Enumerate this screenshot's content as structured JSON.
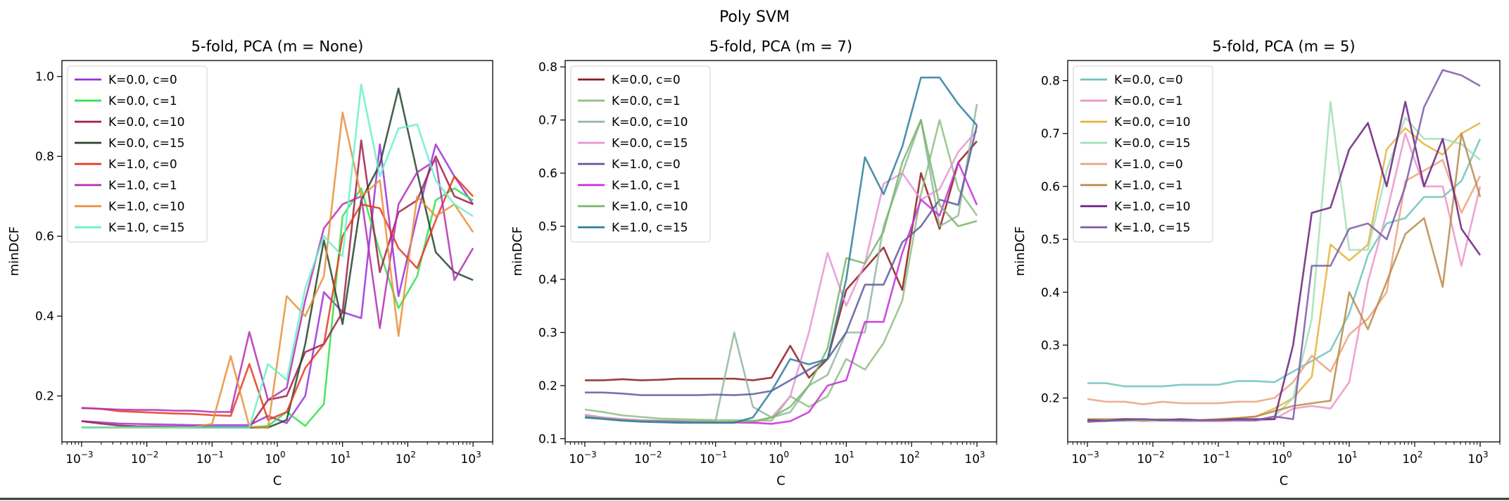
{
  "figure": {
    "suptitle": "Poly SVM"
  },
  "chart_data": [
    {
      "type": "line",
      "title": "5-fold, PCA (m = None)",
      "xlabel": "C",
      "ylabel": "minDCF",
      "xscale": "log",
      "xlim": [
        0.0005,
        2000
      ],
      "ylim": [
        0.085,
        1.04
      ],
      "x_ticks": [
        0.001,
        0.01,
        0.1,
        1,
        10,
        100,
        1000
      ],
      "x_tick_labels": [
        [
          "10",
          "−3"
        ],
        [
          "10",
          "−2"
        ],
        [
          "10",
          "−1"
        ],
        [
          "10",
          "0"
        ],
        [
          "10",
          "1"
        ],
        [
          "10",
          "2"
        ],
        [
          "10",
          "3"
        ]
      ],
      "y_ticks": [
        0.2,
        0.4,
        0.6,
        0.8,
        1.0
      ],
      "y_tick_labels": [
        "0.2",
        "0.4",
        "0.6",
        "0.8",
        "1.0"
      ],
      "legend": "upper-left",
      "x": [
        0.001,
        0.00193,
        0.00373,
        0.0072,
        0.0139,
        0.0268,
        0.0518,
        0.1,
        0.193,
        0.373,
        0.72,
        1.39,
        2.68,
        5.18,
        10,
        19.3,
        37.3,
        72,
        139,
        268,
        518,
        1000
      ],
      "series": [
        {
          "name": "K=0.0, c=0",
          "color": "#9b30d9",
          "values": [
            0.137,
            0.134,
            0.131,
            0.13,
            0.129,
            0.128,
            0.127,
            0.127,
            0.127,
            0.127,
            0.15,
            0.132,
            0.2,
            0.46,
            0.41,
            0.395,
            0.83,
            0.45,
            0.65,
            0.83,
            0.75,
            0.68
          ]
        },
        {
          "name": "K=0.0, c=1",
          "color": "#33e04a",
          "values": [
            0.121,
            0.121,
            0.121,
            0.121,
            0.121,
            0.121,
            0.121,
            0.121,
            0.121,
            0.121,
            0.125,
            0.16,
            0.125,
            0.18,
            0.65,
            0.72,
            0.56,
            0.42,
            0.5,
            0.69,
            0.72,
            0.69
          ]
        },
        {
          "name": "K=0.0, c=10",
          "color": "#9e1f4a",
          "values": [
            0.137,
            0.131,
            0.126,
            0.124,
            0.124,
            0.123,
            0.123,
            0.122,
            0.122,
            0.122,
            0.19,
            0.2,
            0.31,
            0.33,
            0.41,
            0.84,
            0.51,
            0.66,
            0.69,
            0.8,
            0.7,
            0.68
          ]
        },
        {
          "name": "K=0.0, c=15",
          "color": "#24472c",
          "values": [
            0.121,
            0.121,
            0.121,
            0.121,
            0.121,
            0.121,
            0.121,
            0.121,
            0.121,
            0.121,
            0.121,
            0.14,
            0.33,
            0.59,
            0.38,
            0.69,
            0.78,
            0.97,
            0.76,
            0.56,
            0.51,
            0.49
          ]
        },
        {
          "name": "K=1.0, c=0",
          "color": "#e8371f",
          "values": [
            0.17,
            0.168,
            0.162,
            0.16,
            0.158,
            0.156,
            0.155,
            0.152,
            0.15,
            0.28,
            0.14,
            0.16,
            0.27,
            0.33,
            0.6,
            0.68,
            0.67,
            0.57,
            0.52,
            0.64,
            0.75,
            0.7
          ]
        },
        {
          "name": "K=1.0, c=1",
          "color": "#b42fb4",
          "values": [
            0.17,
            0.168,
            0.166,
            0.165,
            0.165,
            0.163,
            0.163,
            0.16,
            0.16,
            0.36,
            0.19,
            0.22,
            0.44,
            0.62,
            0.68,
            0.7,
            0.37,
            0.68,
            0.76,
            0.79,
            0.49,
            0.57
          ]
        },
        {
          "name": "K=1.0, c=10",
          "color": "#e88f3a",
          "values": [
            0.121,
            0.121,
            0.121,
            0.121,
            0.121,
            0.121,
            0.122,
            0.13,
            0.3,
            0.123,
            0.12,
            0.45,
            0.4,
            0.5,
            0.91,
            0.7,
            0.74,
            0.35,
            0.7,
            0.65,
            0.68,
            0.61
          ]
        },
        {
          "name": "K=1.0, c=15",
          "color": "#66f2c9",
          "values": [
            0.121,
            0.121,
            0.121,
            0.121,
            0.121,
            0.121,
            0.121,
            0.121,
            0.121,
            0.121,
            0.28,
            0.24,
            0.47,
            0.6,
            0.55,
            0.98,
            0.75,
            0.87,
            0.88,
            0.74,
            0.68,
            0.65
          ]
        }
      ]
    },
    {
      "type": "line",
      "title": "5-fold, PCA (m = 7)",
      "xlabel": "C",
      "ylabel": "minDCF",
      "xscale": "log",
      "xlim": [
        0.0005,
        2000
      ],
      "ylim": [
        0.094,
        0.812
      ],
      "x_ticks": [
        0.001,
        0.01,
        0.1,
        1,
        10,
        100,
        1000
      ],
      "x_tick_labels": [
        [
          "10",
          "−3"
        ],
        [
          "10",
          "−2"
        ],
        [
          "10",
          "−1"
        ],
        [
          "10",
          "0"
        ],
        [
          "10",
          "1"
        ],
        [
          "10",
          "2"
        ],
        [
          "10",
          "3"
        ]
      ],
      "y_ticks": [
        0.1,
        0.2,
        0.3,
        0.4,
        0.5,
        0.6,
        0.7,
        0.8
      ],
      "y_tick_labels": [
        "0.1",
        "0.2",
        "0.3",
        "0.4",
        "0.5",
        "0.6",
        "0.7",
        "0.8"
      ],
      "legend": "upper-left",
      "x": [
        0.001,
        0.00193,
        0.00373,
        0.0072,
        0.0139,
        0.0268,
        0.0518,
        0.1,
        0.193,
        0.373,
        0.72,
        1.39,
        2.68,
        5.18,
        10,
        19.3,
        37.3,
        72,
        139,
        268,
        518,
        1000
      ],
      "series": [
        {
          "name": "K=0.0, c=0",
          "color": "#8b1a1a",
          "values": [
            0.21,
            0.21,
            0.212,
            0.21,
            0.211,
            0.213,
            0.213,
            0.213,
            0.213,
            0.21,
            0.215,
            0.275,
            0.215,
            0.25,
            0.38,
            0.42,
            0.46,
            0.38,
            0.6,
            0.495,
            0.62,
            0.66
          ]
        },
        {
          "name": "K=0.0, c=1",
          "color": "#8fbf7f",
          "values": [
            0.155,
            0.15,
            0.144,
            0.141,
            0.138,
            0.137,
            0.136,
            0.135,
            0.135,
            0.134,
            0.134,
            0.18,
            0.16,
            0.18,
            0.25,
            0.23,
            0.28,
            0.36,
            0.56,
            0.7,
            0.57,
            0.52
          ]
        },
        {
          "name": "K=0.0, c=10",
          "color": "#8fb89c",
          "values": [
            0.145,
            0.14,
            0.137,
            0.135,
            0.134,
            0.134,
            0.134,
            0.134,
            0.3,
            0.16,
            0.14,
            0.15,
            0.2,
            0.22,
            0.3,
            0.3,
            0.5,
            0.6,
            0.7,
            0.5,
            0.52,
            0.73
          ]
        },
        {
          "name": "K=0.0, c=15",
          "color": "#e693d8",
          "values": [
            0.145,
            0.14,
            0.137,
            0.135,
            0.133,
            0.132,
            0.131,
            0.13,
            0.13,
            0.13,
            0.14,
            0.18,
            0.3,
            0.45,
            0.35,
            0.43,
            0.58,
            0.6,
            0.55,
            0.57,
            0.64,
            0.68
          ]
        },
        {
          "name": "K=1.0, c=0",
          "color": "#5a5aa0",
          "values": [
            0.187,
            0.187,
            0.185,
            0.182,
            0.182,
            0.182,
            0.182,
            0.183,
            0.182,
            0.184,
            0.19,
            0.21,
            0.23,
            0.25,
            0.3,
            0.39,
            0.39,
            0.47,
            0.5,
            0.55,
            0.54,
            0.69
          ]
        },
        {
          "name": "K=1.0, c=1",
          "color": "#c42fd9",
          "values": [
            0.14,
            0.138,
            0.135,
            0.133,
            0.133,
            0.132,
            0.131,
            0.131,
            0.131,
            0.13,
            0.128,
            0.133,
            0.15,
            0.2,
            0.21,
            0.32,
            0.32,
            0.45,
            0.55,
            0.52,
            0.62,
            0.54
          ]
        },
        {
          "name": "K=1.0, c=10",
          "color": "#7ab56b",
          "values": [
            0.142,
            0.138,
            0.135,
            0.133,
            0.132,
            0.131,
            0.131,
            0.131,
            0.132,
            0.133,
            0.14,
            0.16,
            0.2,
            0.27,
            0.44,
            0.43,
            0.49,
            0.62,
            0.7,
            0.54,
            0.5,
            0.51
          ]
        },
        {
          "name": "K=1.0, c=15",
          "color": "#2e7d9c",
          "values": [
            0.14,
            0.137,
            0.134,
            0.132,
            0.131,
            0.13,
            0.13,
            0.13,
            0.13,
            0.14,
            0.19,
            0.25,
            0.24,
            0.25,
            0.4,
            0.63,
            0.56,
            0.65,
            0.78,
            0.78,
            0.73,
            0.69
          ]
        }
      ]
    },
    {
      "type": "line",
      "title": "5-fold, PCA (m = 5)",
      "xlabel": "C",
      "ylabel": "minDCF",
      "xscale": "log",
      "xlim": [
        0.0005,
        2000
      ],
      "ylim": [
        0.117,
        0.838
      ],
      "x_ticks": [
        0.001,
        0.01,
        0.1,
        1,
        10,
        100,
        1000
      ],
      "x_tick_labels": [
        [
          "10",
          "−3"
        ],
        [
          "10",
          "−2"
        ],
        [
          "10",
          "−1"
        ],
        [
          "10",
          "0"
        ],
        [
          "10",
          "1"
        ],
        [
          "10",
          "2"
        ],
        [
          "10",
          "3"
        ]
      ],
      "y_ticks": [
        0.2,
        0.3,
        0.4,
        0.5,
        0.6,
        0.7,
        0.8
      ],
      "y_tick_labels": [
        "0.2",
        "0.3",
        "0.4",
        "0.5",
        "0.6",
        "0.7",
        "0.8"
      ],
      "legend": "upper-left",
      "x": [
        0.001,
        0.00193,
        0.00373,
        0.0072,
        0.0139,
        0.0268,
        0.0518,
        0.1,
        0.193,
        0.373,
        0.72,
        1.39,
        2.68,
        5.18,
        10,
        19.3,
        37.3,
        72,
        139,
        268,
        518,
        1000
      ],
      "series": [
        {
          "name": "K=0.0, c=0",
          "color": "#6cc4bc",
          "values": [
            0.228,
            0.228,
            0.222,
            0.222,
            0.222,
            0.225,
            0.225,
            0.225,
            0.232,
            0.232,
            0.23,
            0.25,
            0.27,
            0.29,
            0.36,
            0.47,
            0.53,
            0.54,
            0.58,
            0.58,
            0.61,
            0.69
          ]
        },
        {
          "name": "K=0.0, c=1",
          "color": "#eb94c8",
          "values": [
            0.155,
            0.157,
            0.157,
            0.156,
            0.157,
            0.156,
            0.156,
            0.156,
            0.157,
            0.157,
            0.16,
            0.18,
            0.185,
            0.18,
            0.23,
            0.42,
            0.55,
            0.7,
            0.6,
            0.6,
            0.45,
            0.6
          ]
        },
        {
          "name": "K=0.0, c=10",
          "color": "#e6b23a",
          "values": [
            0.155,
            0.157,
            0.158,
            0.158,
            0.158,
            0.158,
            0.158,
            0.16,
            0.162,
            0.165,
            0.18,
            0.2,
            0.24,
            0.49,
            0.46,
            0.49,
            0.67,
            0.71,
            0.68,
            0.66,
            0.7,
            0.72
          ]
        },
        {
          "name": "K=0.0, c=15",
          "color": "#a2e0b6",
          "values": [
            0.155,
            0.156,
            0.157,
            0.157,
            0.157,
            0.157,
            0.157,
            0.158,
            0.158,
            0.158,
            0.165,
            0.2,
            0.35,
            0.76,
            0.48,
            0.48,
            0.63,
            0.73,
            0.69,
            0.69,
            0.68,
            0.65
          ]
        },
        {
          "name": "K=1.0, c=0",
          "color": "#eaa27d",
          "values": [
            0.198,
            0.193,
            0.193,
            0.188,
            0.193,
            0.19,
            0.19,
            0.19,
            0.193,
            0.193,
            0.2,
            0.23,
            0.28,
            0.25,
            0.32,
            0.35,
            0.4,
            0.61,
            0.63,
            0.65,
            0.55,
            0.62
          ]
        },
        {
          "name": "K=1.0, c=1",
          "color": "#b88a4a",
          "values": [
            0.16,
            0.16,
            0.16,
            0.158,
            0.16,
            0.158,
            0.158,
            0.16,
            0.162,
            0.165,
            0.175,
            0.185,
            0.19,
            0.195,
            0.4,
            0.33,
            0.42,
            0.51,
            0.54,
            0.41,
            0.7,
            0.58
          ]
        },
        {
          "name": "K=1.0, c=10",
          "color": "#6b1e7d",
          "values": [
            0.158,
            0.157,
            0.16,
            0.16,
            0.158,
            0.16,
            0.158,
            0.158,
            0.16,
            0.16,
            0.16,
            0.3,
            0.55,
            0.56,
            0.67,
            0.72,
            0.6,
            0.76,
            0.6,
            0.69,
            0.52,
            0.47
          ]
        },
        {
          "name": "K=1.0, c=15",
          "color": "#7a5aa8",
          "values": [
            0.155,
            0.157,
            0.158,
            0.16,
            0.158,
            0.158,
            0.158,
            0.158,
            0.158,
            0.158,
            0.165,
            0.16,
            0.45,
            0.45,
            0.52,
            0.53,
            0.5,
            0.6,
            0.75,
            0.82,
            0.81,
            0.79
          ]
        }
      ]
    }
  ]
}
